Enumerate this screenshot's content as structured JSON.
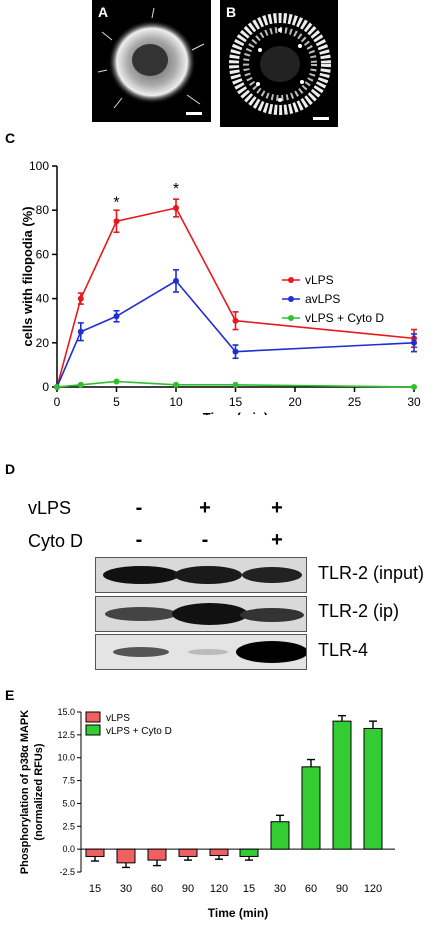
{
  "panels": {
    "A": "A",
    "B": "B",
    "C": "C",
    "D": "D",
    "E": "E"
  },
  "chart_data": [
    {
      "panel": "C",
      "type": "line",
      "title": "",
      "xlabel": "Time (min)",
      "ylabel": "cells with filopodia (%)",
      "xlim": [
        0,
        30
      ],
      "ylim": [
        0,
        100
      ],
      "xticks": [
        0,
        5,
        10,
        15,
        20,
        25,
        30
      ],
      "yticks": [
        0,
        20,
        40,
        60,
        80,
        100
      ],
      "legend_position": "right",
      "series": [
        {
          "name": "vLPS",
          "color": "#e8191c",
          "x": [
            0,
            2,
            5,
            10,
            15,
            30
          ],
          "y": [
            0,
            40,
            75,
            81,
            30,
            22
          ],
          "err": [
            0,
            2.5,
            5,
            4,
            4,
            4
          ]
        },
        {
          "name": "avLPS",
          "color": "#1f2fd0",
          "x": [
            0,
            2,
            5,
            10,
            15,
            30
          ],
          "y": [
            0,
            25,
            32,
            48,
            16,
            20
          ],
          "err": [
            0,
            4,
            2.5,
            5,
            3,
            4
          ]
        },
        {
          "name": "vLPS + Cyto D",
          "color": "#2fc02f",
          "x": [
            0,
            2,
            5,
            10,
            15,
            30
          ],
          "y": [
            0,
            1,
            2.5,
            1,
            1,
            0
          ],
          "err": [
            0,
            0,
            0,
            0,
            0,
            0
          ]
        }
      ],
      "annotations": [
        {
          "text": "*",
          "x": 5,
          "y": 84
        },
        {
          "text": "*",
          "x": 10,
          "y": 90
        }
      ]
    },
    {
      "panel": "E",
      "type": "bar",
      "title": "",
      "xlabel": "Time (min)",
      "ylabel": "Phosphorylation of p38α MAPK (normalized RFUs)",
      "ylabel_line1": "Phosphorylation of p38α MAPK",
      "ylabel_line2": "(normalized RFUs)",
      "ylim": [
        -2.5,
        15.0
      ],
      "yticks": [
        "15.0",
        "12.5",
        "10.0",
        "7.5",
        "5.0",
        "2.5",
        "0.0",
        "-2.5"
      ],
      "ytick_values": [
        15,
        12.5,
        10,
        7.5,
        5,
        2.5,
        0,
        -2.5
      ],
      "legend_position": "top-left",
      "series": [
        {
          "name": "vLPS",
          "color": "#f06060",
          "categories": [
            "15",
            "30",
            "60",
            "90",
            "120"
          ],
          "values": [
            -0.8,
            -1.5,
            -1.2,
            -0.8,
            -0.7
          ],
          "err": [
            0.5,
            0.5,
            0.6,
            0.4,
            0.4
          ]
        },
        {
          "name": "vLPS + Cyto D",
          "color": "#33cc33",
          "categories": [
            "15",
            "30",
            "60",
            "90",
            "120"
          ],
          "values": [
            -0.8,
            3.0,
            9.0,
            14.0,
            13.2
          ],
          "err": [
            0.4,
            0.7,
            0.8,
            0.6,
            0.8
          ]
        }
      ]
    }
  ],
  "blot": {
    "row1_label": "vLPS",
    "row2_label": "Cyto D",
    "row1_signs": [
      "-",
      "+",
      "+"
    ],
    "row2_signs": [
      "-",
      "-",
      "+"
    ],
    "band_labels": [
      "TLR-2 (input)",
      "TLR-2 (ip)",
      "TLR-4"
    ]
  }
}
